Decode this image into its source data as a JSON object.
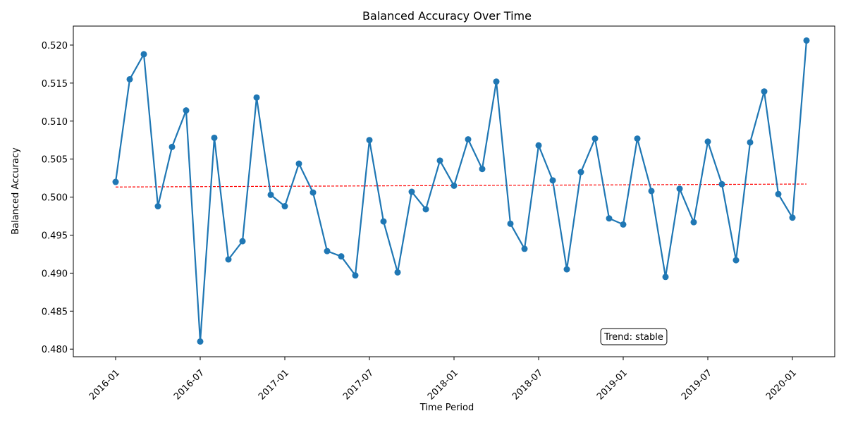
{
  "chart_data": {
    "type": "line",
    "title": "Balanced Accuracy Over Time",
    "xlabel": "Time Period",
    "ylabel": "Balanced Accuracy",
    "x_ticks": [
      "2016-01",
      "2016-07",
      "2017-01",
      "2017-07",
      "2018-01",
      "2018-07",
      "2019-01",
      "2019-07",
      "2020-01"
    ],
    "y_ticks": [
      "0.480",
      "0.485",
      "0.490",
      "0.495",
      "0.500",
      "0.505",
      "0.510",
      "0.515",
      "0.520"
    ],
    "xlim": [
      "2015-10",
      "2020-04"
    ],
    "ylim": [
      0.479,
      0.5225
    ],
    "grid": false,
    "series": [
      {
        "color": "#1f77b4",
        "marker": "circle",
        "x": [
          "2016-01",
          "2016-02",
          "2016-03",
          "2016-04",
          "2016-05",
          "2016-06",
          "2016-07",
          "2016-08",
          "2016-09",
          "2016-10",
          "2016-11",
          "2016-12",
          "2017-01",
          "2017-02",
          "2017-03",
          "2017-04",
          "2017-05",
          "2017-06",
          "2017-07",
          "2017-08",
          "2017-09",
          "2017-10",
          "2017-11",
          "2017-12",
          "2018-01",
          "2018-02",
          "2018-03",
          "2018-04",
          "2018-05",
          "2018-06",
          "2018-07",
          "2018-08",
          "2018-09",
          "2018-10",
          "2018-11",
          "2018-12",
          "2019-01",
          "2019-02",
          "2019-03",
          "2019-04",
          "2019-05",
          "2019-06",
          "2019-07",
          "2019-08",
          "2019-09",
          "2019-10",
          "2019-11",
          "2019-12",
          "2020-01",
          "2020-02"
        ],
        "values": [
          0.502,
          0.5155,
          0.5188,
          0.4988,
          0.5066,
          0.5114,
          0.481,
          0.5078,
          0.4918,
          0.4942,
          0.5131,
          0.5003,
          0.4988,
          0.5044,
          0.5006,
          0.4929,
          0.4922,
          0.4897,
          0.5075,
          0.4968,
          0.4901,
          0.5007,
          0.4984,
          0.5048,
          0.5015,
          0.5076,
          0.5037,
          0.5152,
          0.4965,
          0.4932,
          0.5068,
          0.5022,
          0.4905,
          0.5033,
          0.5077,
          0.4972,
          0.4964,
          0.5077,
          0.5008,
          0.4895,
          0.5011,
          0.4967,
          0.5073,
          0.5017,
          0.4917,
          0.5072,
          0.5139,
          0.5004,
          0.4973,
          0.5206
        ]
      }
    ],
    "trend_line": {
      "color": "#ff0000",
      "style": "dashed",
      "x": [
        "2016-01",
        "2020-02"
      ],
      "values": [
        0.50133,
        0.50172
      ]
    },
    "annotation": {
      "text": "Trend: stable",
      "position": "bottom-right"
    }
  }
}
